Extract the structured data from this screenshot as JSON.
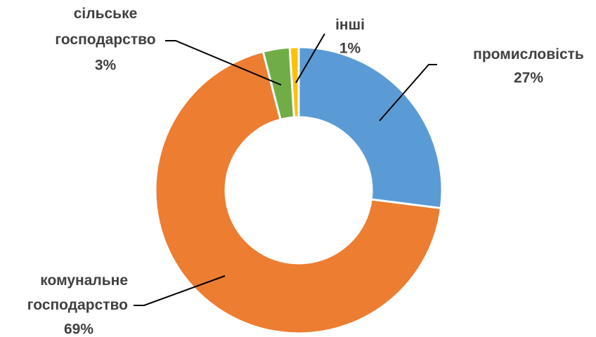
{
  "chart_data": {
    "type": "donut",
    "categories": [
      "промисловість",
      "комунальне господарство",
      "сільське господарство",
      "інші"
    ],
    "values": [
      27,
      69,
      3,
      1
    ],
    "value_labels": [
      "27%",
      "69%",
      "3%",
      "1%"
    ],
    "colors": [
      "#5b9bd5",
      "#ed7d31",
      "#70ad47",
      "#ffc000"
    ]
  }
}
